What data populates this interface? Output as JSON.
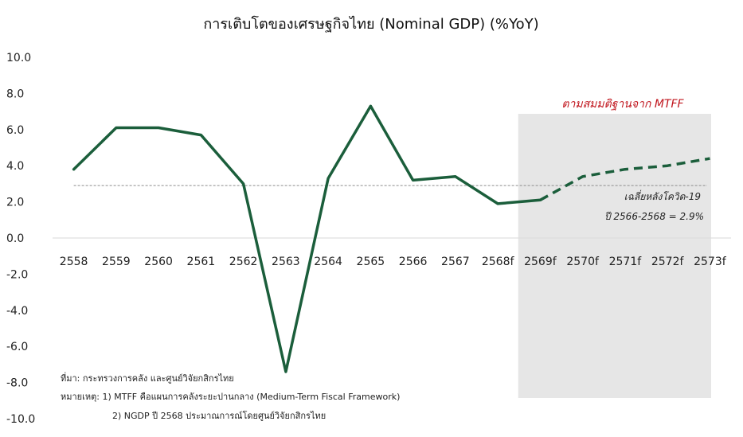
{
  "chart_data": {
    "type": "line",
    "title": "การเติบโตของเศรษฐกิจไทย (Nominal GDP) (%YoY)",
    "xlabel": "",
    "ylabel": "",
    "categories": [
      "2558",
      "2559",
      "2560",
      "2561",
      "2562",
      "2563",
      "2564",
      "2565",
      "2566",
      "2567",
      "2568f",
      "2569f",
      "2570f",
      "2571f",
      "2572f",
      "2573f"
    ],
    "series": [
      {
        "values": [
          3.8,
          6.1,
          6.1,
          5.7,
          3.0,
          -7.4,
          3.3,
          7.3,
          3.2,
          3.4,
          1.9,
          2.1,
          3.4,
          3.8,
          4.0,
          4.4
        ],
        "actual_until_index": 11,
        "color": "#1b5e3b"
      }
    ],
    "ylim": [
      -10,
      10
    ],
    "yticks": [
      "10.0",
      "8.0",
      "6.0",
      "4.0",
      "2.0",
      "0.0",
      "-2.0",
      "-4.0",
      "-6.0",
      "-8.0",
      "-10.0"
    ],
    "average_line": {
      "value": 2.9,
      "color": "#8c8c8c"
    },
    "shaded_region": {
      "from_index": 11,
      "to_index": 15,
      "color": "#e6e6e6"
    },
    "grid": false,
    "annotations": {
      "mtff": "ตามสมมติฐานจาก MTFF",
      "avg_line1": "เฉลี่ยหลังโควิด-19",
      "avg_line2": "ปี 2566-2568 = 2.9%"
    },
    "notes": {
      "source": "ที่มา: กระทรวงการคลัง และศูนย์วิจัยกสิกรไทย",
      "remark1": "หมายเหตุ: 1) MTFF คือแผนการคลังระยะปานกลาง (Medium-Term Fiscal Framework)",
      "remark2": "2) NGDP ปี 2568 ประมาณการณ์โดยศูนย์วิจัยกสิกรไทย"
    }
  }
}
